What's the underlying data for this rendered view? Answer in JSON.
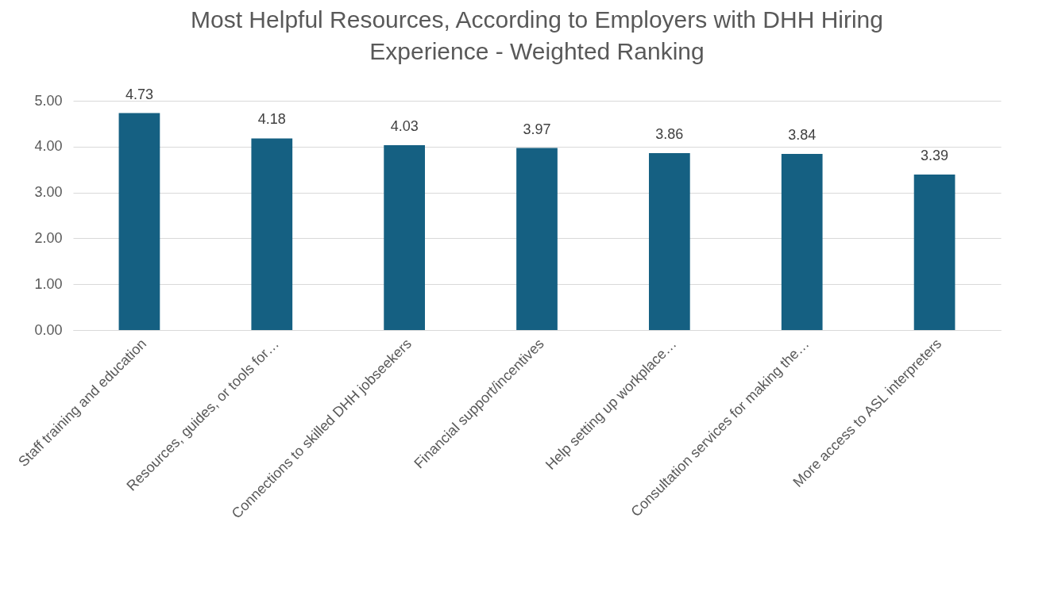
{
  "chart_data": {
    "type": "bar",
    "title": [
      "Most Helpful Resources, According to Employers with DHH Hiring",
      "Experience - Weighted Ranking"
    ],
    "categories": [
      "Staff training and education",
      "Resources, guides, or tools for…",
      "Connections to skilled DHH jobseekers",
      "Financial support/incentives",
      "Help setting up workplace…",
      "Consultation services for making the…",
      "More access to ASL interpreters"
    ],
    "values": [
      4.73,
      4.18,
      4.03,
      3.97,
      3.86,
      3.84,
      3.39
    ],
    "color": "#156082",
    "ylim": [
      0,
      5
    ],
    "yticks": [
      {
        "value": 0,
        "label": "0.00"
      },
      {
        "value": 1,
        "label": "1.00"
      },
      {
        "value": 2,
        "label": "2.00"
      },
      {
        "value": 3,
        "label": "3.00"
      },
      {
        "value": 4,
        "label": "4.00"
      },
      {
        "value": 5,
        "label": "5.00"
      }
    ],
    "grid": "y",
    "data_labels": true
  }
}
